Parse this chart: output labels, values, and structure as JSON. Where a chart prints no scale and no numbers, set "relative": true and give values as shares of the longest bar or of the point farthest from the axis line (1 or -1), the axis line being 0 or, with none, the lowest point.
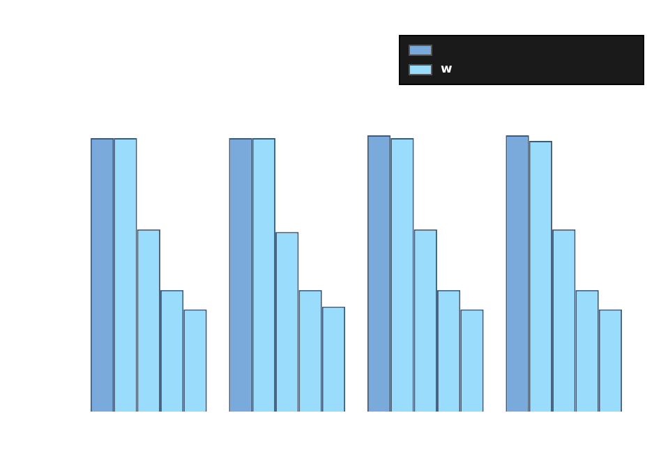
{
  "chart_data": {
    "type": "bar",
    "relative": true,
    "legend": "top right",
    "categories": [
      null,
      null,
      null,
      null
    ],
    "series": [
      {
        "color": "#7aaadc",
        "values": [
          0.99,
          0.99,
          1,
          1
        ]
      },
      {
        "name": "w",
        "color": "#9adcfc",
        "values": [
          0.99,
          0.99,
          0.99,
          0.98
        ]
      },
      {
        "color": "#9adcfc",
        "values": [
          0.66,
          0.65,
          0.66,
          0.66
        ]
      },
      {
        "color": "#9adcfc",
        "values": [
          0.44,
          0.44,
          0.44,
          0.44
        ]
      },
      {
        "color": "#9adcfc",
        "values": [
          0.37,
          0.38,
          0.37,
          0.37
        ]
      }
    ]
  }
}
